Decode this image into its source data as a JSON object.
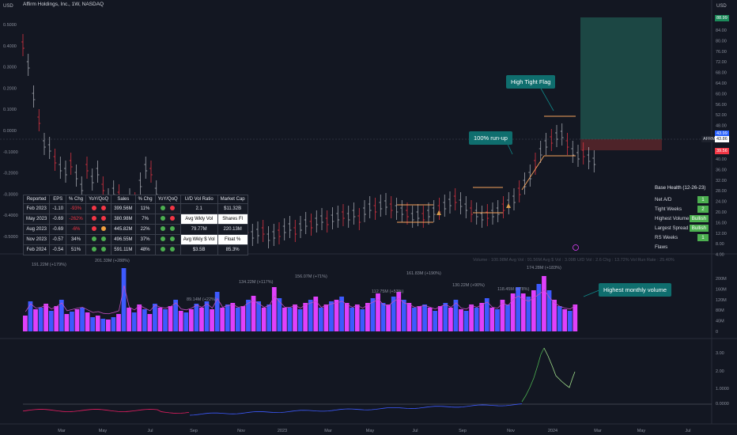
{
  "header": {
    "title": "Affirm Holdings, Inc., 1W, NASDAQ",
    "currency_left": "USD",
    "currency_right": "USD"
  },
  "left_axis_ticks": [
    "0.5000",
    "0.4000",
    "0.3000",
    "0.2000",
    "0.1000",
    "0.0000",
    "-0.1000",
    "-0.2000",
    "-0.3000",
    "-0.4000",
    "-0.5000"
  ],
  "right_axis_ticks": [
    "84.00",
    "80.00",
    "76.00",
    "72.00",
    "68.00",
    "64.00",
    "60.00",
    "56.00",
    "52.00",
    "48.00",
    "40.00",
    "36.00",
    "32.00",
    "28.00",
    "24.00",
    "20.00",
    "16.00",
    "12.00",
    "8.00",
    "4.00"
  ],
  "price_tags": {
    "top": "88.99",
    "current": "43.99",
    "ticker": "AFRM",
    "ticker_price": "43.86",
    "lower": "39.56"
  },
  "volume_axis_ticks": [
    "200M",
    "160M",
    "120M",
    "80M",
    "40M",
    "0"
  ],
  "osc_axis_ticks": [
    "3.00",
    "2.00",
    "1.0000",
    "0.0000"
  ],
  "x_axis_labels": [
    "Mar",
    "May",
    "Jul",
    "Sep",
    "Nov",
    "2023",
    "Mar",
    "May",
    "Jul",
    "Sep",
    "Nov",
    "2024",
    "Mar",
    "May",
    "Jul"
  ],
  "volume_labels": [
    "191.22M (+179%)",
    "201.33M (+288%)",
    "89.14M (+22%)",
    "134.22M (+117%)",
    "156.07M (+71%)",
    "112.75M (+53%)",
    "161.83M (+190%)",
    "130.22M (+90%)",
    "118.45M (+78%)",
    "174.28M (+183%)"
  ],
  "stats_bar": "Volume : 100.98M    Avg Vol : 91.56M    Avg $ Vol : 3.09B    U/D Vol : 2.6    Chg : 13.72%    Vol Run Rate : 25.40%",
  "fundamentals": {
    "headers": [
      "Reported",
      "EPS",
      "% Chg",
      "YoY/QoQ",
      "Sales",
      "% Chg",
      "YoY/QoQ",
      "U/D Vol Ratio",
      "Market Cap"
    ],
    "rows": [
      {
        "period": "Feb 2023",
        "eps": "-1.10",
        "eps_chg": "-93%",
        "eps_neg": true,
        "d1": "#f23645",
        "d2": "#f23645",
        "sales": "399.56M",
        "sales_chg": "11%",
        "d3": "#4caf50",
        "d4": "#f23645",
        "k": "2.1",
        "v": "$11.32B",
        "wb": false
      },
      {
        "period": "May 2023",
        "eps": "-0.69",
        "eps_chg": "-262%",
        "eps_neg": true,
        "d1": "#f23645",
        "d2": "#f23645",
        "sales": "380.98M",
        "sales_chg": "7%",
        "d3": "#4caf50",
        "d4": "#f23645",
        "k": "Avg Wkly Vol",
        "v": "Shares Fl",
        "wb": true
      },
      {
        "period": "Aug 2023",
        "eps": "-0.69",
        "eps_chg": "-6%",
        "eps_neg": true,
        "d1": "#f23645",
        "d2": "#f0a040",
        "sales": "445.82M",
        "sales_chg": "22%",
        "d3": "#4caf50",
        "d4": "#4caf50",
        "k": "79.77M",
        "v": "220.13M",
        "wb": false
      },
      {
        "period": "Nov 2023",
        "eps": "-0.57",
        "eps_chg": "34%",
        "eps_neg": false,
        "d1": "#4caf50",
        "d2": "#4caf50",
        "sales": "496.55M",
        "sales_chg": "37%",
        "d3": "#4caf50",
        "d4": "#4caf50",
        "k": "Avg Wkly $ Vol",
        "v": "Float %",
        "wb": true
      },
      {
        "period": "Feb 2024",
        "eps": "-0.54",
        "eps_chg": "51%",
        "eps_neg": false,
        "d1": "#4caf50",
        "d2": "#4caf50",
        "sales": "591.11M",
        "sales_chg": "48%",
        "d3": "#4caf50",
        "d4": "#4caf50",
        "k": "$3.5B",
        "v": "85.3%",
        "wb": false
      }
    ]
  },
  "base_health": {
    "title": "Base Health (12-26-23)",
    "rows": [
      {
        "label": "Net A/D",
        "value": "1"
      },
      {
        "label": "Tight Weeks",
        "value": "2"
      },
      {
        "label": "Highest Volume",
        "value": "Bullish"
      },
      {
        "label": "Largest Spread",
        "value": "Bullish"
      },
      {
        "label": "RS Weeks",
        "value": "1"
      },
      {
        "label": "Flaws",
        "value": ""
      }
    ]
  },
  "callouts": {
    "high_tight_flag": "High Tight Flag",
    "run_up": "100% run-up",
    "highest_volume": "Highest monthly volume"
  },
  "colors": {
    "background": "#131722",
    "up_volume": "#3d5afe",
    "down_volume": "#e040fb",
    "callout": "#0f6e6e",
    "target_zone": "#1f4f4c",
    "stop_zone": "#5a2a2e"
  }
}
